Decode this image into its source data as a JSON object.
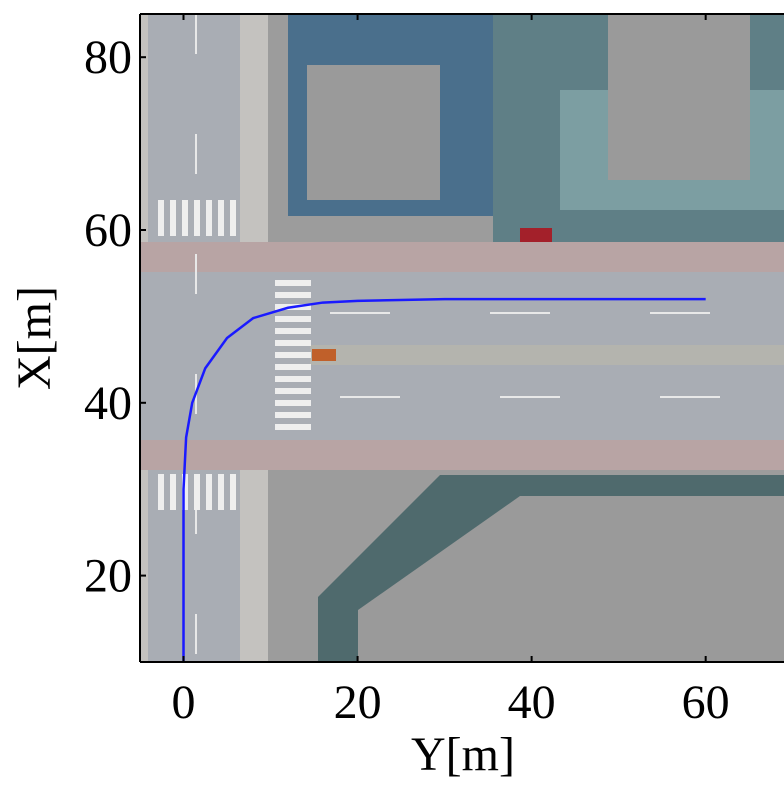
{
  "chart_data": {
    "type": "line",
    "xlabel": "Y[m]",
    "ylabel": "X[m]",
    "x": [
      0,
      0,
      0,
      0.3,
      1,
      2.5,
      5,
      8,
      12,
      16,
      20,
      30,
      40,
      50,
      60
    ],
    "series": [
      {
        "color": "#1a1aff",
        "values": [
          10,
          20,
          30,
          36,
          40,
          44,
          47.5,
          49.8,
          51,
          51.6,
          51.8,
          52,
          52,
          52,
          52
        ]
      }
    ],
    "xlim": [
      -5,
      69
    ],
    "ylim": [
      10,
      85
    ],
    "xticks": [
      0,
      20,
      40,
      60
    ],
    "yticks": [
      20,
      40,
      60,
      80
    ]
  }
}
